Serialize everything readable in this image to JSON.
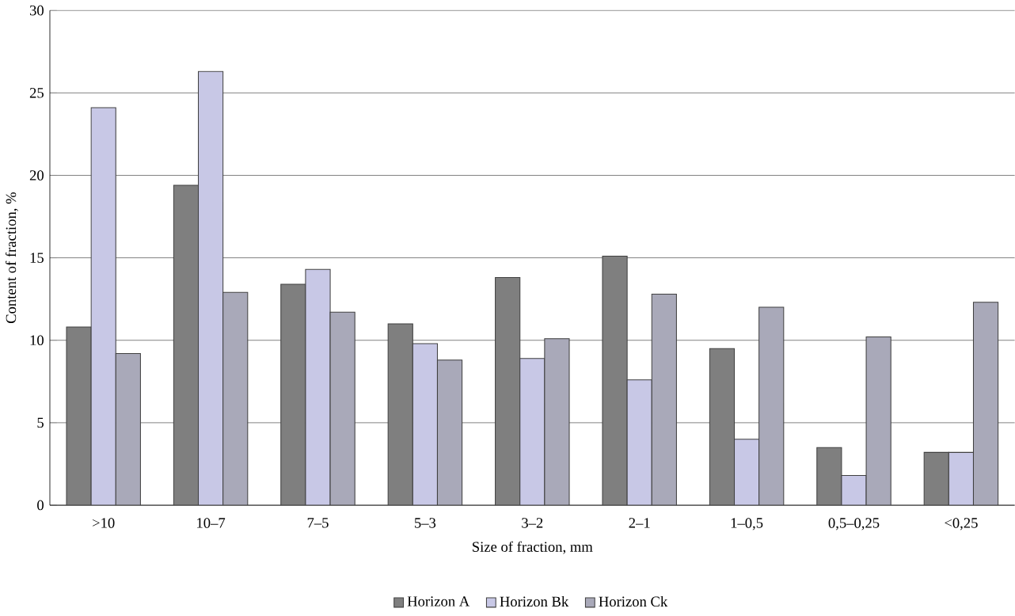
{
  "chart_data": {
    "type": "bar",
    "xlabel": "Size of fraction, mm",
    "ylabel": "Content of fraction, %",
    "categories": [
      ">10",
      "10–7",
      "7–5",
      "5–3",
      "3–2",
      "2–1",
      "1–0,5",
      "0,5–0,25",
      "<0,25"
    ],
    "series": [
      {
        "name": "Horizon A",
        "color": "#7f7f7f",
        "values": [
          10.8,
          19.4,
          13.4,
          11.0,
          13.8,
          15.1,
          9.5,
          3.5,
          3.2
        ]
      },
      {
        "name": "Horizon Bk",
        "color": "#c8c8e6",
        "values": [
          24.1,
          26.3,
          14.3,
          9.8,
          8.9,
          7.6,
          4.0,
          1.8,
          3.2
        ]
      },
      {
        "name": "Horizon Ck",
        "color": "#a9a9b9",
        "values": [
          9.2,
          12.9,
          11.7,
          8.8,
          10.1,
          12.8,
          12.0,
          10.2,
          12.3
        ]
      }
    ],
    "ylim": [
      0,
      30
    ],
    "yticks": [
      0,
      5,
      10,
      15,
      20,
      25,
      30
    ],
    "grid": "y",
    "legend": "bottom"
  }
}
